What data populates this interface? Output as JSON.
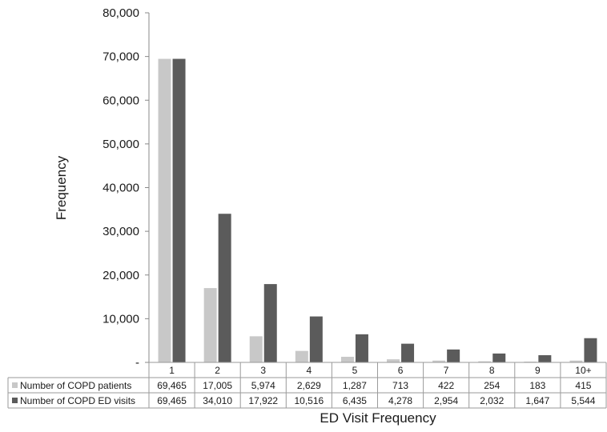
{
  "chart_data": {
    "type": "bar",
    "title": "",
    "xlabel": "ED Visit Frequency",
    "ylabel": "Frequency",
    "ylim": [
      0,
      80000
    ],
    "yticks": [
      0,
      10000,
      20000,
      30000,
      40000,
      50000,
      60000,
      70000,
      80000
    ],
    "ytick_labels": [
      "-",
      "10,000",
      "20,000",
      "30,000",
      "40,000",
      "50,000",
      "60,000",
      "70,000",
      "80,000"
    ],
    "categories": [
      "1",
      "2",
      "3",
      "4",
      "5",
      "6",
      "7",
      "8",
      "9",
      "10+"
    ],
    "series": [
      {
        "name": "Number of COPD patients",
        "color": "#c8c8c8",
        "values": [
          69465,
          17005,
          5974,
          2629,
          1287,
          713,
          422,
          254,
          183,
          415
        ],
        "labels": [
          "69,465",
          "17,005",
          "5,974",
          "2,629",
          "1,287",
          "713",
          "422",
          "254",
          "183",
          "415"
        ]
      },
      {
        "name": "Number of COPD ED visits",
        "color": "#5b5b5b",
        "values": [
          69465,
          34010,
          17922,
          10516,
          6435,
          4278,
          2954,
          2032,
          1647,
          5544
        ],
        "labels": [
          "69,465",
          "34,010",
          "17,922",
          "10,516",
          "6,435",
          "4,278",
          "2,954",
          "2,032",
          "1,647",
          "5,544"
        ]
      }
    ],
    "grid": false,
    "legend": "data-table"
  }
}
